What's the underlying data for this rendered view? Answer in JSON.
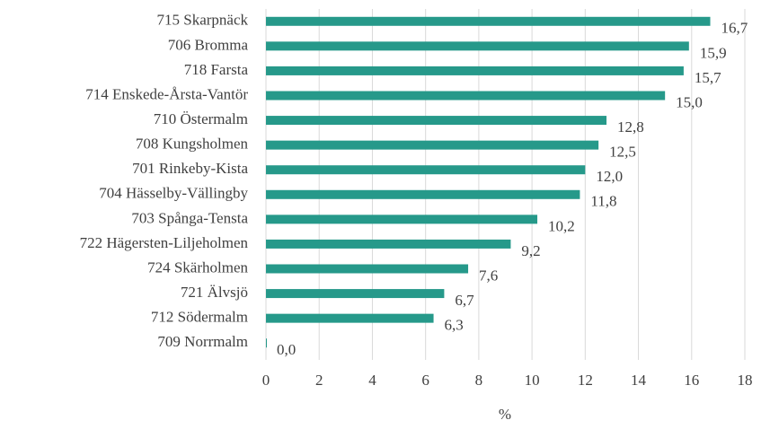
{
  "chart_data": {
    "type": "bar",
    "orientation": "horizontal",
    "categories": [
      "715 Skarpnäck",
      "706 Bromma",
      "718 Farsta",
      "714 Enskede-Årsta-Vantör",
      "710 Östermalm",
      "708 Kungsholmen",
      "701 Rinkeby-Kista",
      "704 Hässelby-Vällingby",
      "703 Spånga-Tensta",
      "722 Hägersten-Liljeholmen",
      "724 Skärholmen",
      "721 Älvsjö",
      "712 Södermalm",
      "709 Norrmalm"
    ],
    "values": [
      16.7,
      15.9,
      15.7,
      15.0,
      12.8,
      12.5,
      12.0,
      11.8,
      10.2,
      9.2,
      7.6,
      6.7,
      6.3,
      0.0
    ],
    "value_labels": [
      "16,7",
      "15,9",
      "15,7",
      "15,0",
      "12,8",
      "12,5",
      "12,0",
      "11,8",
      "10,2",
      "9,2",
      "7,6",
      "6,7",
      "6,3",
      "0,0"
    ],
    "color": "#26998a",
    "xlabel": "%",
    "xlim": [
      0,
      18
    ],
    "xticks": [
      0,
      2,
      4,
      6,
      8,
      10,
      12,
      14,
      16,
      18
    ],
    "grid": true
  }
}
